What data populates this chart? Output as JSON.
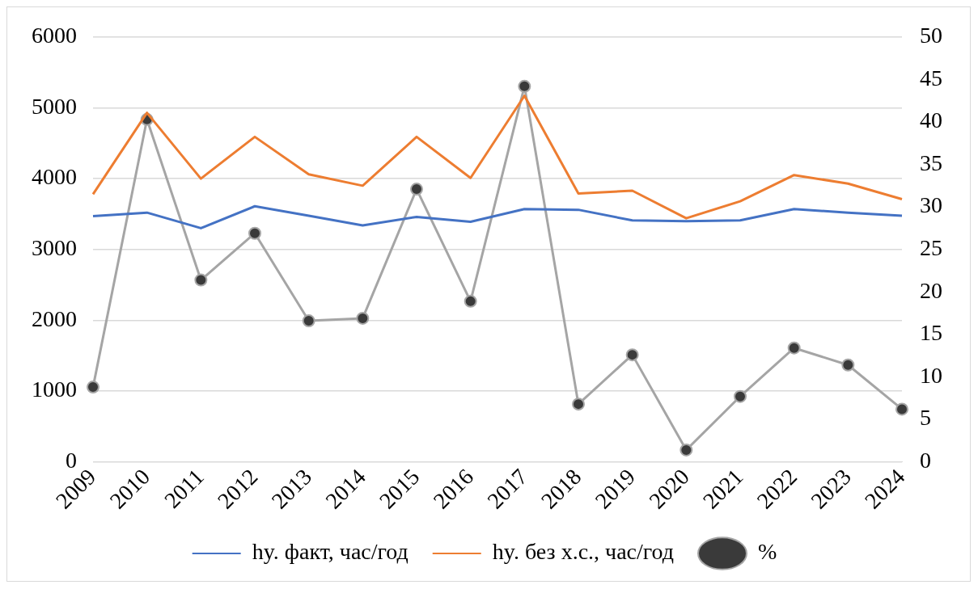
{
  "chart_data": {
    "type": "line",
    "categories": [
      "2009",
      "2010",
      "2011",
      "2012",
      "2013",
      "2014",
      "2015",
      "2016",
      "2017",
      "2018",
      "2019",
      "2020",
      "2021",
      "2022",
      "2023",
      "2024"
    ],
    "series": [
      {
        "name": "hy. факт, час/год",
        "color": "#4472c4",
        "marker": "none",
        "values": [
          3470,
          3520,
          3300,
          3610,
          3475,
          3340,
          3460,
          3390,
          3570,
          3560,
          3410,
          3400,
          3410,
          3570,
          3520,
          3475
        ]
      },
      {
        "name": "hy. без х.с., час/год",
        "color": "#ed7d31",
        "marker": "none",
        "values": [
          3780,
          4930,
          4000,
          4590,
          4060,
          3900,
          4590,
          4010,
          5170,
          3790,
          3830,
          3440,
          3680,
          4050,
          3930,
          3710
        ]
      },
      {
        "name": "%",
        "color": "#a5a5a5",
        "marker": "circle",
        "axis": "y2",
        "values": [
          8.8,
          40.3,
          21.4,
          26.9,
          16.6,
          16.9,
          32.1,
          18.9,
          44.2,
          6.8,
          12.6,
          1.4,
          7.7,
          13.4,
          11.4,
          6.2
        ]
      }
    ],
    "ylim": [
      0,
      6000
    ],
    "yticks": [
      0,
      1000,
      2000,
      3000,
      4000,
      5000,
      6000
    ],
    "y2lim": [
      0,
      50
    ],
    "y2ticks": [
      0,
      5,
      10,
      15,
      20,
      25,
      30,
      35,
      40,
      45,
      50
    ],
    "grid": "y",
    "legend": "bottom",
    "line_style": "solid"
  }
}
